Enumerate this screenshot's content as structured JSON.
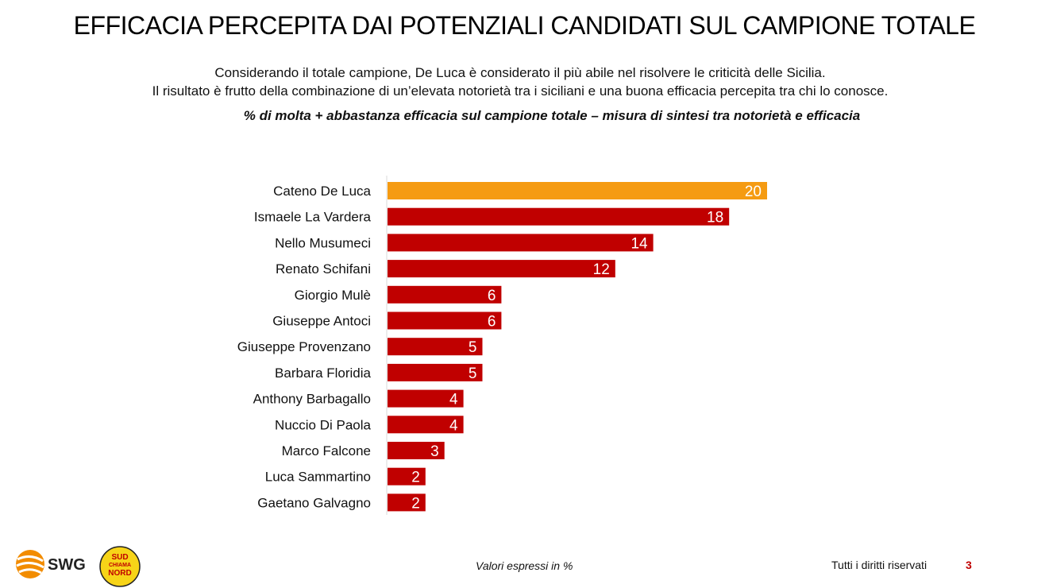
{
  "title": "EFFICACIA PERCEPITA DAI POTENZIALI CANDIDATI SUL CAMPIONE TOTALE",
  "subtitle_line1": "Considerando il totale campione, De Luca è considerato il più abile nel risolvere le criticità delle Sicilia.",
  "subtitle_line2": "Il risultato è frutto della combinazione di un’elevata notorietà tra i siciliani  e una buona efficacia percepita tra chi lo conosce.",
  "measure_note": "% di molta + abbastanza efficacia sul campione totale – misura di sintesi tra notorietà e efficacia",
  "footer": {
    "values_note": "Valori espressi in %",
    "rights": "Tutti i diritti riservati",
    "page_number": "3",
    "logo_swg": "SWG",
    "logo_sud_lines": [
      "SUD",
      "CHIAMA",
      "NORD"
    ]
  },
  "colors": {
    "highlight": "#f59b12",
    "bar": "#c00000",
    "label_text": "#ffffff"
  },
  "chart_data": {
    "type": "bar",
    "orientation": "horizontal",
    "categories": [
      "Cateno De Luca",
      "Ismaele La Vardera",
      "Nello Musumeci",
      "Renato Schifani",
      "Giorgio Mulè",
      "Giuseppe Antoci",
      "Giuseppe Provenzano",
      "Barbara Floridia",
      "Anthony Barbagallo",
      "Nuccio Di Paola",
      "Marco Falcone",
      "Luca Sammartino",
      "Gaetano Galvagno"
    ],
    "values": [
      20,
      18,
      14,
      12,
      6,
      6,
      5,
      5,
      4,
      4,
      3,
      2,
      2
    ],
    "highlight_index": 0,
    "xlim": [
      0,
      20
    ],
    "grid": false,
    "legend": "none"
  }
}
